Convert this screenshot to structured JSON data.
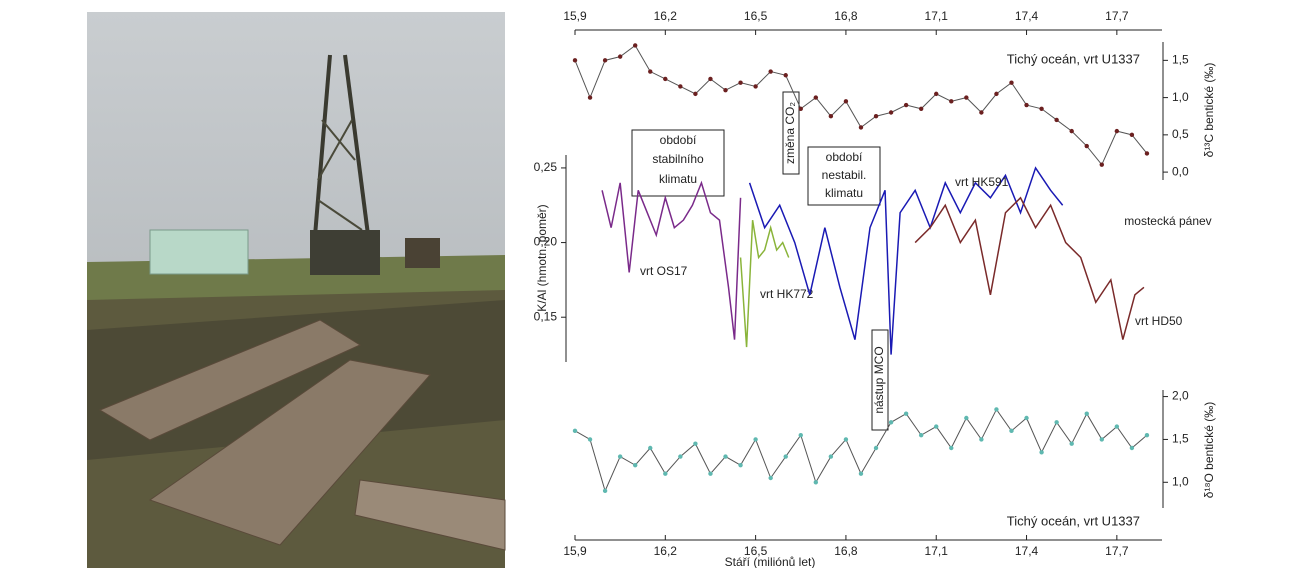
{
  "chart_data": [
    {
      "type": "line",
      "markers": true,
      "annotation": "Tichý oceán, vrt U1337",
      "ylabel": "δ¹³C bentické (‰)",
      "xlim": [
        15.9,
        17.85
      ],
      "xticks": [
        {
          "value": 15.9,
          "label": "15,9"
        },
        {
          "value": 16.2,
          "label": "16,2"
        },
        {
          "value": 16.5,
          "label": "16,5"
        },
        {
          "value": 16.8,
          "label": "16,8"
        },
        {
          "value": 17.1,
          "label": "17,1"
        },
        {
          "value": 17.4,
          "label": "17,4"
        },
        {
          "value": 17.7,
          "label": "17,7"
        }
      ],
      "ylim": [
        -0.2,
        1.8
      ],
      "yticks": [
        {
          "value": 0,
          "label": "0,0"
        },
        {
          "value": 0.5,
          "label": "0,5"
        },
        {
          "value": 1,
          "label": "1,0"
        },
        {
          "value": 1.5,
          "label": "1,5"
        }
      ],
      "series": [
        {
          "color": "#6b2020",
          "x": [
            15.9,
            15.95,
            16.0,
            16.05,
            16.1,
            16.15,
            16.2,
            16.25,
            16.3,
            16.35,
            16.4,
            16.45,
            16.5,
            16.55,
            16.6,
            16.65,
            16.7,
            16.75,
            16.8,
            16.85,
            16.9,
            16.95,
            17.0,
            17.05,
            17.1,
            17.15,
            17.2,
            17.25,
            17.3,
            17.35,
            17.4,
            17.45,
            17.5,
            17.55,
            17.6,
            17.65,
            17.7,
            17.75,
            17.8
          ],
          "values": [
            1.5,
            1.0,
            1.5,
            1.55,
            1.7,
            1.35,
            1.25,
            1.15,
            1.05,
            1.25,
            1.1,
            1.2,
            1.15,
            1.35,
            1.3,
            0.85,
            1.0,
            0.75,
            0.95,
            0.6,
            0.75,
            0.8,
            0.9,
            0.85,
            1.05,
            0.95,
            1.0,
            0.8,
            1.05,
            1.2,
            0.9,
            0.85,
            0.7,
            0.55,
            0.35,
            0.1,
            0.55,
            0.5,
            0.25
          ]
        }
      ]
    },
    {
      "type": "line",
      "markers": false,
      "ylabel": "K/Al (hmotn. poměr)",
      "annotations": [
        [
          "období",
          "stabilního",
          "klimatu"
        ],
        [
          "změna CO₂"
        ],
        [
          "období",
          "nestabil.",
          "klimatu"
        ],
        [
          "nástup MCO"
        ],
        [
          "mostecká pánev"
        ]
      ],
      "xlim": [
        15.9,
        17.85
      ],
      "ylim": [
        0.12,
        0.26
      ],
      "yticks": [
        {
          "value": 0.15,
          "label": "0,15"
        },
        {
          "value": 0.2,
          "label": "0,20"
        },
        {
          "value": 0.25,
          "label": "0,25"
        }
      ],
      "series": [
        {
          "name": "vrt OS17",
          "color": "#7a2a8a",
          "x": [
            15.99,
            16.02,
            16.05,
            16.08,
            16.11,
            16.14,
            16.17,
            16.2,
            16.23,
            16.26,
            16.29,
            16.32,
            16.35,
            16.38,
            16.41,
            16.43,
            16.45
          ],
          "values": [
            0.235,
            0.21,
            0.24,
            0.18,
            0.235,
            0.22,
            0.205,
            0.23,
            0.21,
            0.215,
            0.225,
            0.24,
            0.22,
            0.215,
            0.17,
            0.135,
            0.23
          ]
        },
        {
          "name": "vrt HK772",
          "color": "#8ab43a",
          "x": [
            16.45,
            16.47,
            16.49,
            16.51,
            16.53,
            16.55,
            16.57,
            16.59,
            16.61
          ],
          "values": [
            0.19,
            0.13,
            0.215,
            0.19,
            0.195,
            0.21,
            0.195,
            0.2,
            0.19
          ]
        },
        {
          "name": "vrt HK591",
          "color": "#1a1ab4",
          "x": [
            16.48,
            16.53,
            16.58,
            16.63,
            16.68,
            16.73,
            16.78,
            16.83,
            16.88,
            16.93,
            16.95,
            16.98,
            17.03,
            17.08,
            17.13,
            17.18,
            17.23,
            17.28,
            17.33,
            17.38,
            17.43,
            17.48,
            17.52
          ],
          "values": [
            0.24,
            0.21,
            0.225,
            0.2,
            0.165,
            0.21,
            0.17,
            0.135,
            0.21,
            0.235,
            0.125,
            0.22,
            0.235,
            0.21,
            0.24,
            0.22,
            0.24,
            0.23,
            0.245,
            0.22,
            0.25,
            0.235,
            0.225
          ]
        },
        {
          "name": "vrt HD50",
          "color": "#7a2a2a",
          "x": [
            17.03,
            17.08,
            17.13,
            17.18,
            17.23,
            17.28,
            17.33,
            17.38,
            17.43,
            17.48,
            17.53,
            17.58,
            17.63,
            17.68,
            17.72,
            17.76,
            17.79
          ],
          "values": [
            0.2,
            0.21,
            0.225,
            0.2,
            0.215,
            0.165,
            0.22,
            0.23,
            0.21,
            0.225,
            0.2,
            0.19,
            0.16,
            0.175,
            0.135,
            0.165,
            0.17
          ]
        }
      ]
    },
    {
      "type": "line",
      "markers": true,
      "annotation": "Tichý oceán, vrt U1337",
      "ylabel": "δ¹⁸O bentické (‰)",
      "xlabel": "Stáří (miliónů let)",
      "xlim": [
        15.9,
        17.85
      ],
      "xticks": [
        {
          "value": 15.9,
          "label": "15,9"
        },
        {
          "value": 16.2,
          "label": "16,2"
        },
        {
          "value": 16.5,
          "label": "16,5"
        },
        {
          "value": 16.8,
          "label": "16,8"
        },
        {
          "value": 17.1,
          "label": "17,1"
        },
        {
          "value": 17.4,
          "label": "17,4"
        },
        {
          "value": 17.7,
          "label": "17,7"
        }
      ],
      "ylim": [
        0.7,
        2.1
      ],
      "yticks": [
        {
          "value": 1,
          "label": "1,0"
        },
        {
          "value": 1.5,
          "label": "1,5"
        },
        {
          "value": 2,
          "label": "2,0"
        }
      ],
      "series": [
        {
          "color": "#5fb8b0",
          "x": [
            15.9,
            15.95,
            16.0,
            16.05,
            16.1,
            16.15,
            16.2,
            16.25,
            16.3,
            16.35,
            16.4,
            16.45,
            16.5,
            16.55,
            16.6,
            16.65,
            16.7,
            16.75,
            16.8,
            16.85,
            16.9,
            16.95,
            17.0,
            17.05,
            17.1,
            17.15,
            17.2,
            17.25,
            17.3,
            17.35,
            17.4,
            17.45,
            17.5,
            17.55,
            17.6,
            17.65,
            17.7,
            17.75,
            17.8
          ],
          "values": [
            1.6,
            1.5,
            0.9,
            1.3,
            1.2,
            1.4,
            1.1,
            1.3,
            1.45,
            1.1,
            1.3,
            1.2,
            1.5,
            1.05,
            1.3,
            1.55,
            1.0,
            1.3,
            1.5,
            1.1,
            1.4,
            1.7,
            1.8,
            1.55,
            1.65,
            1.4,
            1.75,
            1.5,
            1.85,
            1.6,
            1.75,
            1.35,
            1.7,
            1.45,
            1.8,
            1.5,
            1.65,
            1.4,
            1.55
          ]
        }
      ]
    }
  ]
}
